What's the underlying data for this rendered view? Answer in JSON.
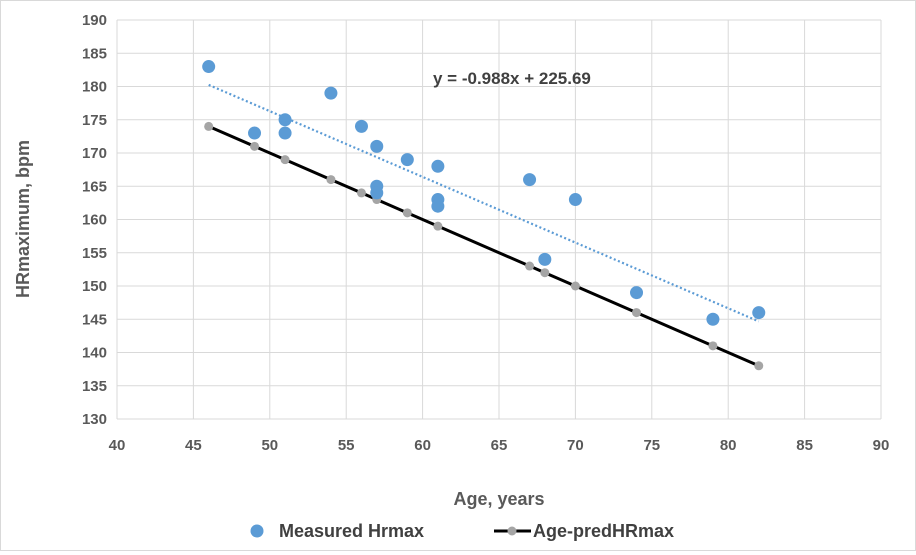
{
  "chart_data": {
    "type": "scatter",
    "xlabel": "Age, years",
    "ylabel": "HRmaximum, bpm",
    "xlim": [
      40,
      90
    ],
    "ylim": [
      130,
      190
    ],
    "x_ticks": [
      40,
      45,
      50,
      55,
      60,
      65,
      70,
      75,
      80,
      85,
      90
    ],
    "y_ticks": [
      130,
      135,
      140,
      145,
      150,
      155,
      160,
      165,
      170,
      175,
      180,
      185,
      190
    ],
    "x_tick_labels": [
      "40",
      "45",
      "50",
      "55",
      "60",
      "65",
      "70",
      "75",
      "80",
      "85",
      "90"
    ],
    "y_tick_labels": [
      "130",
      "135",
      "140",
      "145",
      "150",
      "155",
      "160",
      "165",
      "170",
      "175",
      "180",
      "185",
      "190"
    ],
    "grid": true,
    "legend_position": "bottom",
    "series": [
      {
        "name": "Measured Hrmax",
        "style": "markers",
        "color": "#5b9bd5",
        "x": [
          46,
          49,
          51,
          51,
          54,
          56,
          57,
          57,
          57,
          59,
          61,
          61,
          61,
          67,
          68,
          70,
          74,
          79,
          82
        ],
        "y": [
          183,
          173,
          175,
          173,
          179,
          174,
          171,
          165,
          164,
          169,
          168,
          163,
          162,
          166,
          154,
          163,
          149,
          145,
          146
        ]
      },
      {
        "name": "Age-predHRmax",
        "style": "line-markers",
        "color": "#000000",
        "marker_color": "#a5a5a5",
        "x": [
          46,
          49,
          51,
          54,
          56,
          57,
          59,
          61,
          67,
          68,
          70,
          74,
          79,
          82
        ],
        "y": [
          174,
          171,
          169,
          166,
          164,
          163,
          161,
          159,
          153,
          152,
          150,
          146,
          141,
          138
        ]
      }
    ],
    "trendline": {
      "series": "Measured Hrmax",
      "slope": -0.988,
      "intercept": 225.69,
      "x_range": [
        46,
        82
      ],
      "color": "#5b9bd5",
      "style": "dotted",
      "equation_label": "y = -0.988x + 225.69"
    }
  }
}
